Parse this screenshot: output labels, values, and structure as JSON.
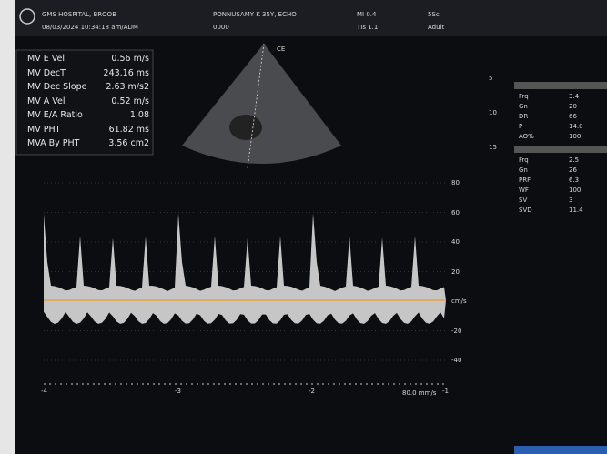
{
  "header": {
    "hospital": "GMS HOSPITAL, BROOB",
    "datetime": "08/03/2024 10:34:18 am/ADM",
    "patient": "PONNUSAMY K 35Y, ECHO",
    "id": "0000",
    "mi": "MI 0.4",
    "tis": "TIs 1.1",
    "probe": "5Sc",
    "preset": "Adult"
  },
  "measurements": [
    {
      "label": "MV E Vel",
      "value": "0.56 m/s"
    },
    {
      "label": "MV DecT",
      "value": "243.16 ms"
    },
    {
      "label": "MV Dec Slope",
      "value": "2.63 m/s2"
    },
    {
      "label": "MV A Vel",
      "value": "0.52 m/s"
    },
    {
      "label": "MV E/A Ratio",
      "value": "1.08"
    },
    {
      "label": "MV PHT",
      "value": "61.82 ms"
    },
    {
      "label": "MVA By PHT",
      "value": "3.56 cm2"
    }
  ],
  "sector_label": "CE",
  "depth_scale": [
    "5",
    "10",
    "15"
  ],
  "velocity_scale": [
    "80",
    "60",
    "40",
    "20",
    "cm/s",
    "-20",
    "-40"
  ],
  "time_scale": [
    "-4",
    "-3",
    "-2",
    "-1"
  ],
  "sweep": "80.0 mm/s",
  "right_panel_top": [
    {
      "label": "Frq",
      "value": "3.4"
    },
    {
      "label": "Gn",
      "value": "20"
    },
    {
      "label": "DR",
      "value": "66"
    },
    {
      "label": "P",
      "value": "14.0"
    },
    {
      "label": "AO%",
      "value": "100"
    }
  ],
  "right_panel_bottom": [
    {
      "label": "Frq",
      "value": "2.5"
    },
    {
      "label": "Gn",
      "value": "26"
    },
    {
      "label": "PRF",
      "value": "6.3"
    },
    {
      "label": "WF",
      "value": "100"
    },
    {
      "label": "SV",
      "value": "3"
    },
    {
      "label": "SVD",
      "value": "11.4"
    }
  ]
}
